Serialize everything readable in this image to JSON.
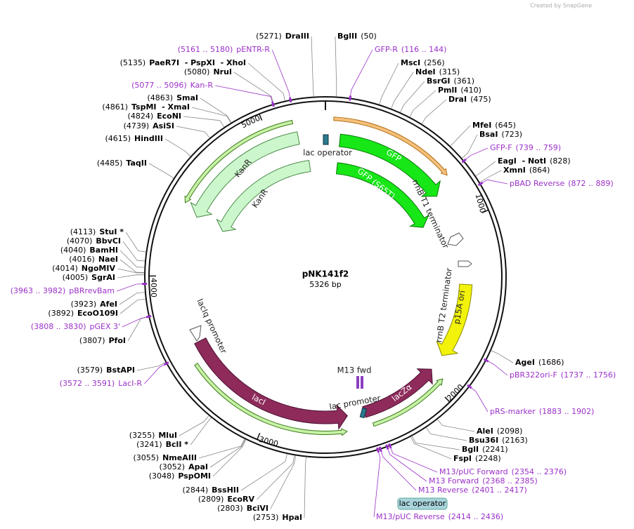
{
  "header": {
    "credit": "Created by SnapGene"
  },
  "map": {
    "name": "pNK141f2",
    "size": "5326 bp",
    "ticks": [
      "1000",
      "2000",
      "3000",
      "4000",
      "5000"
    ]
  },
  "sites": [
    {
      "pos": "(5271)",
      "name": "DraIII"
    },
    {
      "pos": "(5135)",
      "name": "PaeR7I  - PspXI  - XhoI"
    },
    {
      "pos": "(5080)",
      "name": "NruI"
    },
    {
      "pos": "(4863)",
      "name": "SmaI"
    },
    {
      "pos": "(4861)",
      "name": "TspMI  - XmaI"
    },
    {
      "pos": "(4824)",
      "name": "EcoNI"
    },
    {
      "pos": "(4739)",
      "name": "AsiSI"
    },
    {
      "pos": "(4615)",
      "name": "HindIII"
    },
    {
      "pos": "(4485)",
      "name": "TaqII"
    },
    {
      "pos": "(4113)",
      "name": "StuI *"
    },
    {
      "pos": "(4070)",
      "name": "BbvCI"
    },
    {
      "pos": "(4040)",
      "name": "BamHI"
    },
    {
      "pos": "(4016)",
      "name": "NaeI"
    },
    {
      "pos": "(4014)",
      "name": "NgoMIV"
    },
    {
      "pos": "(4005)",
      "name": "SgrAI"
    },
    {
      "pos": "(3923)",
      "name": "AfeI"
    },
    {
      "pos": "(3892)",
      "name": "EcoO109I"
    },
    {
      "pos": "(3807)",
      "name": "PfoI"
    },
    {
      "pos": "(3579)",
      "name": "BstAPI"
    },
    {
      "pos": "(3255)",
      "name": "MluI"
    },
    {
      "pos": "(3241)",
      "name": "BclI *"
    },
    {
      "pos": "(3055)",
      "name": "NmeAIII"
    },
    {
      "pos": "(3052)",
      "name": "ApaI"
    },
    {
      "pos": "(3048)",
      "name": "PspOMI"
    },
    {
      "pos": "(2844)",
      "name": "BssHII"
    },
    {
      "pos": "(2809)",
      "name": "EcoRV"
    },
    {
      "pos": "(2803)",
      "name": "BciVI"
    },
    {
      "pos": "(2753)",
      "name": "HpaI"
    },
    {
      "pos": "(50)",
      "name": "BglII"
    },
    {
      "pos": "(256)",
      "name": "MscI"
    },
    {
      "pos": "(315)",
      "name": "NdeI"
    },
    {
      "pos": "(361)",
      "name": "BsrGI"
    },
    {
      "pos": "(410)",
      "name": "PmlI"
    },
    {
      "pos": "(475)",
      "name": "DraI"
    },
    {
      "pos": "(645)",
      "name": "MfeI"
    },
    {
      "pos": "(723)",
      "name": "BsaI"
    },
    {
      "pos": "(828)",
      "name": "EagI  - NotI"
    },
    {
      "pos": "(864)",
      "name": "XmnI"
    },
    {
      "pos": "(1686)",
      "name": "AgeI"
    },
    {
      "pos": "(2098)",
      "name": "AleI"
    },
    {
      "pos": "(2163)",
      "name": "Bsu36I"
    },
    {
      "pos": "(2241)",
      "name": "BglI"
    },
    {
      "pos": "(2248)",
      "name": "FspI"
    }
  ],
  "primers": [
    {
      "range": "(5161 .. 5180)",
      "name": "pENTR-R"
    },
    {
      "range": "(5077 .. 5096)",
      "name": "Kan-R"
    },
    {
      "range": "(3963 .. 3982)",
      "name": "pBRrevBam"
    },
    {
      "range": "(3808 .. 3830)",
      "name": "pGEX 3'"
    },
    {
      "range": "(3572 .. 3591)",
      "name": "LacI-R"
    },
    {
      "range": "(116 .. 144)",
      "name": "GFP-R"
    },
    {
      "range": "(739 .. 759)",
      "name": "GFP-F"
    },
    {
      "range": "(872 .. 889)",
      "name": "pBAD Reverse"
    },
    {
      "range": "(1737 .. 1756)",
      "name": "pBR322ori-F"
    },
    {
      "range": "(1883 .. 1902)",
      "name": "pRS-marker"
    },
    {
      "range": "(2354 .. 2376)",
      "name": "M13/pUC Forward"
    },
    {
      "range": "(2368 .. 2385)",
      "name": "M13 Forward"
    },
    {
      "range": "(2401 .. 2417)",
      "name": "M13 Reverse"
    },
    {
      "range": "(2414 .. 2436)",
      "name": "M13/pUC Reverse"
    }
  ],
  "features": [
    "lac operator",
    "GFP",
    "GFP (S65T)",
    "KanR",
    "KanR",
    "rrnB T1 terminator",
    "rrnB T2 terminator",
    "p15A ori",
    "lacIq promoter",
    "lacI",
    "lac promoter",
    "lacZα",
    "M13 fwd"
  ],
  "callout": "lac operator"
}
